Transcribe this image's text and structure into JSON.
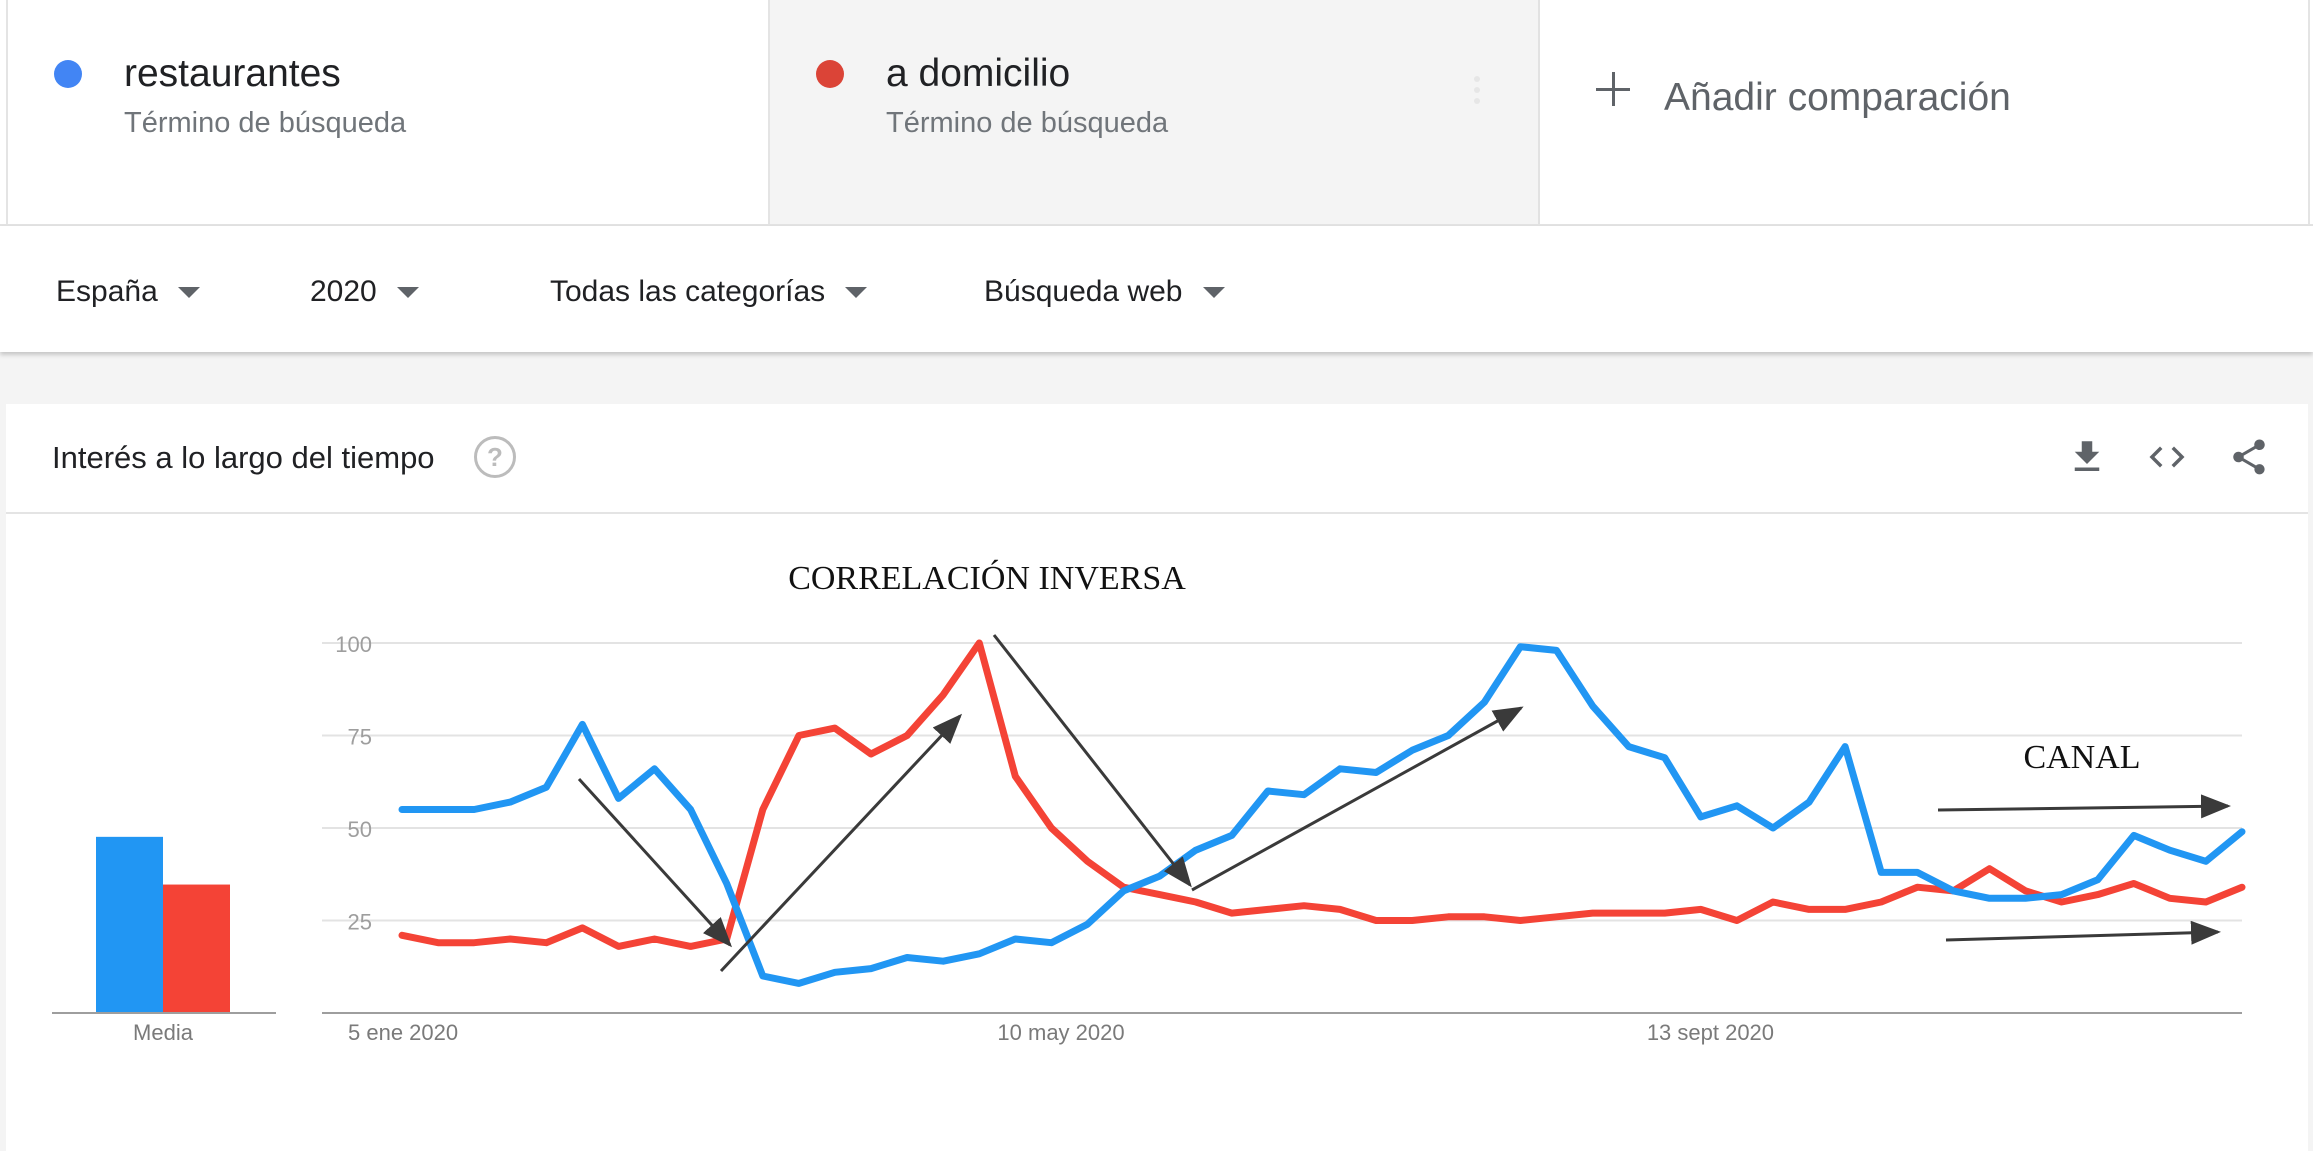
{
  "terms": [
    {
      "name": "restaurantes",
      "subtitle": "Término de búsqueda",
      "color": "#4285f4"
    },
    {
      "name": "a domicilio",
      "subtitle": "Término de búsqueda",
      "color": "#db4437"
    }
  ],
  "add_comparison": {
    "label": "Añadir comparación"
  },
  "filters": {
    "region": "España",
    "period": "2020",
    "category": "Todas las categorías",
    "search_type": "Búsqueda web"
  },
  "card": {
    "title": "Interés a lo largo del tiempo",
    "help_glyph": "?"
  },
  "icons": {
    "download": "download-icon",
    "embed": "embed-icon",
    "share": "share-icon",
    "help": "help-icon"
  },
  "annotations": {
    "correlation": "CORRELACIÓN INVERSA",
    "channel": "CANAL"
  },
  "chart_data": [
    {
      "type": "bar",
      "categories": [
        "restaurantes",
        "a domicilio"
      ],
      "values": [
        48,
        35
      ],
      "xlabel": "Media",
      "ylim": [
        0,
        100
      ],
      "colors": [
        "#2196f3",
        "#f44336"
      ]
    },
    {
      "type": "line",
      "x": [
        "2020-01-05",
        "2020-01-12",
        "2020-01-19",
        "2020-01-26",
        "2020-02-02",
        "2020-02-09",
        "2020-02-16",
        "2020-02-23",
        "2020-03-01",
        "2020-03-08",
        "2020-03-15",
        "2020-03-22",
        "2020-03-29",
        "2020-04-05",
        "2020-04-12",
        "2020-04-19",
        "2020-04-26",
        "2020-05-03",
        "2020-05-10",
        "2020-05-17",
        "2020-05-24",
        "2020-05-31",
        "2020-06-07",
        "2020-06-14",
        "2020-06-21",
        "2020-06-28",
        "2020-07-05",
        "2020-07-12",
        "2020-07-19",
        "2020-07-26",
        "2020-08-02",
        "2020-08-09",
        "2020-08-16",
        "2020-08-23",
        "2020-08-30",
        "2020-09-06",
        "2020-09-13",
        "2020-09-20",
        "2020-09-27",
        "2020-10-04",
        "2020-10-11",
        "2020-10-18",
        "2020-10-25",
        "2020-11-01",
        "2020-11-08",
        "2020-11-15",
        "2020-11-22",
        "2020-11-29",
        "2020-12-06",
        "2020-12-13",
        "2020-12-20",
        "2020-12-27"
      ],
      "series": [
        {
          "name": "restaurantes",
          "color": "#2196f3",
          "values": [
            55,
            55,
            55,
            57,
            61,
            78,
            58,
            66,
            55,
            35,
            10,
            8,
            11,
            12,
            15,
            14,
            16,
            20,
            19,
            24,
            33,
            37,
            44,
            48,
            60,
            59,
            66,
            65,
            71,
            75,
            84,
            99,
            98,
            83,
            72,
            69,
            53,
            56,
            50,
            57,
            72,
            38,
            38,
            33,
            31,
            31,
            32,
            36,
            48,
            44,
            41,
            49
          ]
        },
        {
          "name": "a domicilio",
          "color": "#f44336",
          "values": [
            21,
            19,
            19,
            20,
            19,
            23,
            18,
            20,
            18,
            20,
            55,
            75,
            77,
            70,
            75,
            86,
            100,
            64,
            50,
            41,
            34,
            32,
            30,
            27,
            28,
            29,
            28,
            25,
            25,
            26,
            26,
            25,
            26,
            27,
            27,
            27,
            28,
            25,
            30,
            28,
            28,
            30,
            34,
            33,
            39,
            33,
            30,
            32,
            35,
            31,
            30,
            34
          ]
        }
      ],
      "xticks": [
        {
          "date": "2020-01-05",
          "label": "5 ene 2020"
        },
        {
          "date": "2020-05-10",
          "label": "10 may 2020"
        },
        {
          "date": "2020-09-13",
          "label": "13 sept 2020"
        }
      ],
      "yticks": [
        25,
        50,
        75,
        100
      ],
      "ylim": [
        0,
        100
      ],
      "grid": true
    }
  ]
}
